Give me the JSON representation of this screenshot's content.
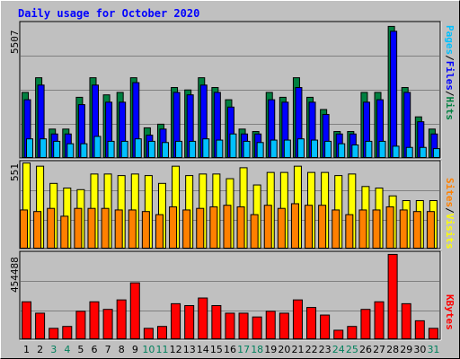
{
  "title": "Daily usage for October 2020",
  "colors": {
    "title": "#0000ff",
    "hits": "#008040",
    "files": "#0000ff",
    "pages": "#00c0ff",
    "visits": "#ffff00",
    "sites": "#ff8000",
    "kbytes": "#ff0000",
    "weekday": "#000000",
    "weekend": "#00805c",
    "panel_bg": "#c0c0c0",
    "grid": "#808080"
  },
  "chart_data": [
    {
      "type": "bar",
      "panel": "hits-files-pages",
      "ymax_label": "5507",
      "ylim": [
        0,
        5507
      ],
      "legend": [
        "Pages",
        "Files",
        "Hits"
      ],
      "categories": [
        "1",
        "2",
        "3",
        "4",
        "5",
        "6",
        "7",
        "8",
        "9",
        "10",
        "11",
        "12",
        "13",
        "14",
        "15",
        "16",
        "17",
        "18",
        "19",
        "20",
        "21",
        "22",
        "23",
        "24",
        "25",
        "26",
        "27",
        "28",
        "29",
        "30",
        "31"
      ],
      "weekend_days": [
        "3",
        "4",
        "10",
        "11",
        "17",
        "18",
        "24",
        "25",
        "31"
      ],
      "series": [
        {
          "name": "Hits",
          "values": [
            2700,
            3300,
            1200,
            1200,
            2500,
            3300,
            2600,
            2700,
            3300,
            1250,
            1400,
            2900,
            2800,
            3300,
            2900,
            2400,
            1200,
            1100,
            2700,
            2500,
            3300,
            2500,
            2000,
            1100,
            1100,
            2700,
            2700,
            5400,
            2900,
            1700,
            1200
          ]
        },
        {
          "name": "Files",
          "values": [
            2400,
            3000,
            1000,
            1000,
            2200,
            3000,
            2300,
            2300,
            3100,
            950,
            1200,
            2700,
            2600,
            3000,
            2700,
            2100,
            1000,
            1000,
            2400,
            2300,
            2900,
            2300,
            1800,
            1000,
            1000,
            2300,
            2400,
            5200,
            2700,
            1500,
            1000
          ]
        },
        {
          "name": "Pages",
          "values": [
            800,
            800,
            700,
            600,
            600,
            900,
            700,
            700,
            800,
            700,
            650,
            700,
            700,
            800,
            750,
            1000,
            700,
            650,
            750,
            750,
            800,
            750,
            700,
            600,
            550,
            700,
            700,
            500,
            450,
            450,
            400
          ]
        }
      ]
    },
    {
      "type": "bar",
      "panel": "visits-sites",
      "ymax_label": "551",
      "ylim": [
        0,
        551
      ],
      "legend": [
        "Sites",
        "Visits"
      ],
      "categories": [
        "1",
        "2",
        "3",
        "4",
        "5",
        "6",
        "7",
        "8",
        "9",
        "10",
        "11",
        "12",
        "13",
        "14",
        "15",
        "16",
        "17",
        "18",
        "19",
        "20",
        "21",
        "22",
        "23",
        "24",
        "25",
        "26",
        "27",
        "28",
        "29",
        "30",
        "31"
      ],
      "series": [
        {
          "name": "Visits",
          "values": [
            550,
            530,
            420,
            390,
            380,
            480,
            480,
            470,
            480,
            470,
            420,
            530,
            470,
            480,
            480,
            450,
            520,
            410,
            490,
            490,
            530,
            490,
            490,
            470,
            480,
            400,
            390,
            340,
            310,
            310,
            310
          ]
        },
        {
          "name": "Sites",
          "values": [
            250,
            240,
            260,
            210,
            260,
            260,
            260,
            250,
            250,
            240,
            220,
            270,
            250,
            260,
            270,
            280,
            270,
            220,
            280,
            260,
            290,
            280,
            280,
            250,
            220,
            250,
            250,
            270,
            250,
            240,
            240
          ]
        }
      ]
    },
    {
      "type": "bar",
      "panel": "kbytes",
      "ymax_label": "454488",
      "ylim": [
        0,
        454488
      ],
      "legend": [
        "KBytes"
      ],
      "categories": [
        "1",
        "2",
        "3",
        "4",
        "5",
        "6",
        "7",
        "8",
        "9",
        "10",
        "11",
        "12",
        "13",
        "14",
        "15",
        "16",
        "17",
        "18",
        "19",
        "20",
        "21",
        "22",
        "23",
        "24",
        "25",
        "26",
        "27",
        "28",
        "29",
        "30",
        "31"
      ],
      "series": [
        {
          "name": "KBytes",
          "values": [
            200000,
            140000,
            60000,
            70000,
            150000,
            200000,
            160000,
            210000,
            300000,
            60000,
            70000,
            190000,
            180000,
            220000,
            180000,
            140000,
            140000,
            120000,
            150000,
            140000,
            210000,
            170000,
            130000,
            50000,
            70000,
            160000,
            200000,
            450000,
            190000,
            100000,
            60000
          ]
        }
      ]
    }
  ]
}
